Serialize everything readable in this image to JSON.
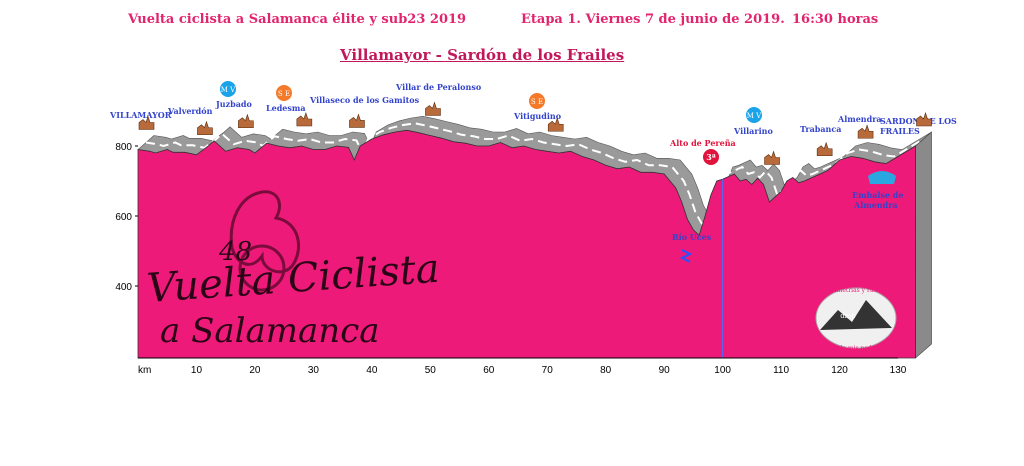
{
  "header": {
    "race": "Vuelta ciclista a Salamanca élite y sub23 2019",
    "stage": "Etapa 1. Viernes 7 de junio de 2019.",
    "time": "16:30 horas",
    "route": "Villamayor - Sardón de los Frailes"
  },
  "colors": {
    "profile": "#ee1a7a",
    "road": "#9a9a9a",
    "title": "#e2246f",
    "place": "#3344cc",
    "climb": "#e0143c"
  },
  "chart_data": {
    "type": "area",
    "title": "Villamayor - Sardón de los Frailes",
    "x_unit_label": "km",
    "xlim": [
      0,
      130
    ],
    "ylim": [
      400,
      800
    ],
    "x_ticks": [
      10,
      20,
      30,
      40,
      50,
      60,
      70,
      80,
      90,
      100,
      110,
      120,
      130
    ],
    "y_ticks": [
      400,
      600,
      800
    ],
    "profile": {
      "x": [
        0,
        2,
        3,
        5,
        6,
        8,
        10,
        12,
        13,
        15,
        17,
        19,
        20,
        22,
        24,
        26,
        28,
        30,
        32,
        34,
        36,
        37,
        38,
        40,
        42,
        44,
        46,
        48,
        50,
        52,
        54,
        56,
        58,
        60,
        62,
        64,
        66,
        68,
        70,
        72,
        74,
        76,
        78,
        80,
        82,
        84,
        86,
        88,
        90,
        92,
        93,
        94,
        95,
        96,
        97,
        98,
        99,
        100,
        102,
        103,
        104,
        105,
        106,
        107,
        108,
        110,
        111,
        112,
        113,
        114,
        116,
        118,
        120,
        122,
        124,
        126,
        127,
        128,
        130,
        133
      ],
      "y": [
        790,
        785,
        780,
        790,
        782,
        782,
        775,
        800,
        815,
        785,
        795,
        790,
        780,
        808,
        800,
        795,
        800,
        790,
        790,
        800,
        796,
        760,
        800,
        820,
        832,
        840,
        845,
        838,
        830,
        822,
        812,
        808,
        800,
        800,
        810,
        795,
        800,
        790,
        785,
        780,
        785,
        770,
        760,
        745,
        735,
        740,
        725,
        725,
        720,
        680,
        640,
        590,
        560,
        545,
        600,
        660,
        700,
        705,
        720,
        700,
        705,
        690,
        708,
        690,
        640,
        670,
        700,
        710,
        695,
        700,
        715,
        730,
        760,
        770,
        765,
        755,
        752,
        750,
        770,
        800
      ]
    },
    "places": [
      {
        "name": "VILLAMAYOR",
        "km": 0
      },
      {
        "name": "Valverdón",
        "km": 10
      },
      {
        "name": "Juzbado",
        "km": 17
      },
      {
        "name": "Ledesma",
        "km": 27
      },
      {
        "name": "Villaseco de los Gamitos",
        "km": 36
      },
      {
        "name": "Villar de Peralonso",
        "km": 49
      },
      {
        "name": "Vitigudino",
        "km": 70
      },
      {
        "name": "Río Uces",
        "km": 96
      },
      {
        "name": "Alto de Pereña",
        "km": 101
      },
      {
        "name": "Villarino",
        "km": 107
      },
      {
        "name": "Trabanca",
        "km": 116
      },
      {
        "name": "Almendra",
        "km": 123
      },
      {
        "name": "Embalse de Almendra",
        "km": 126
      },
      {
        "name": "SARDON DE LOS FRAILES",
        "km": 133
      }
    ],
    "sprints": [
      {
        "label": "M V",
        "km": 17
      },
      {
        "label": "S E",
        "km": 27
      },
      {
        "label": "S E",
        "km": 70
      },
      {
        "label": "M V",
        "km": 107
      }
    ],
    "climb": {
      "label": "3ª",
      "km": 100
    },
    "logo_text": [
      "48",
      "Vuelta Ciclista",
      "a Salamanca"
    ],
    "watermark_text": [
      "alimetrias y rutas",
      "desde mis pedales",
      "dmp"
    ]
  }
}
